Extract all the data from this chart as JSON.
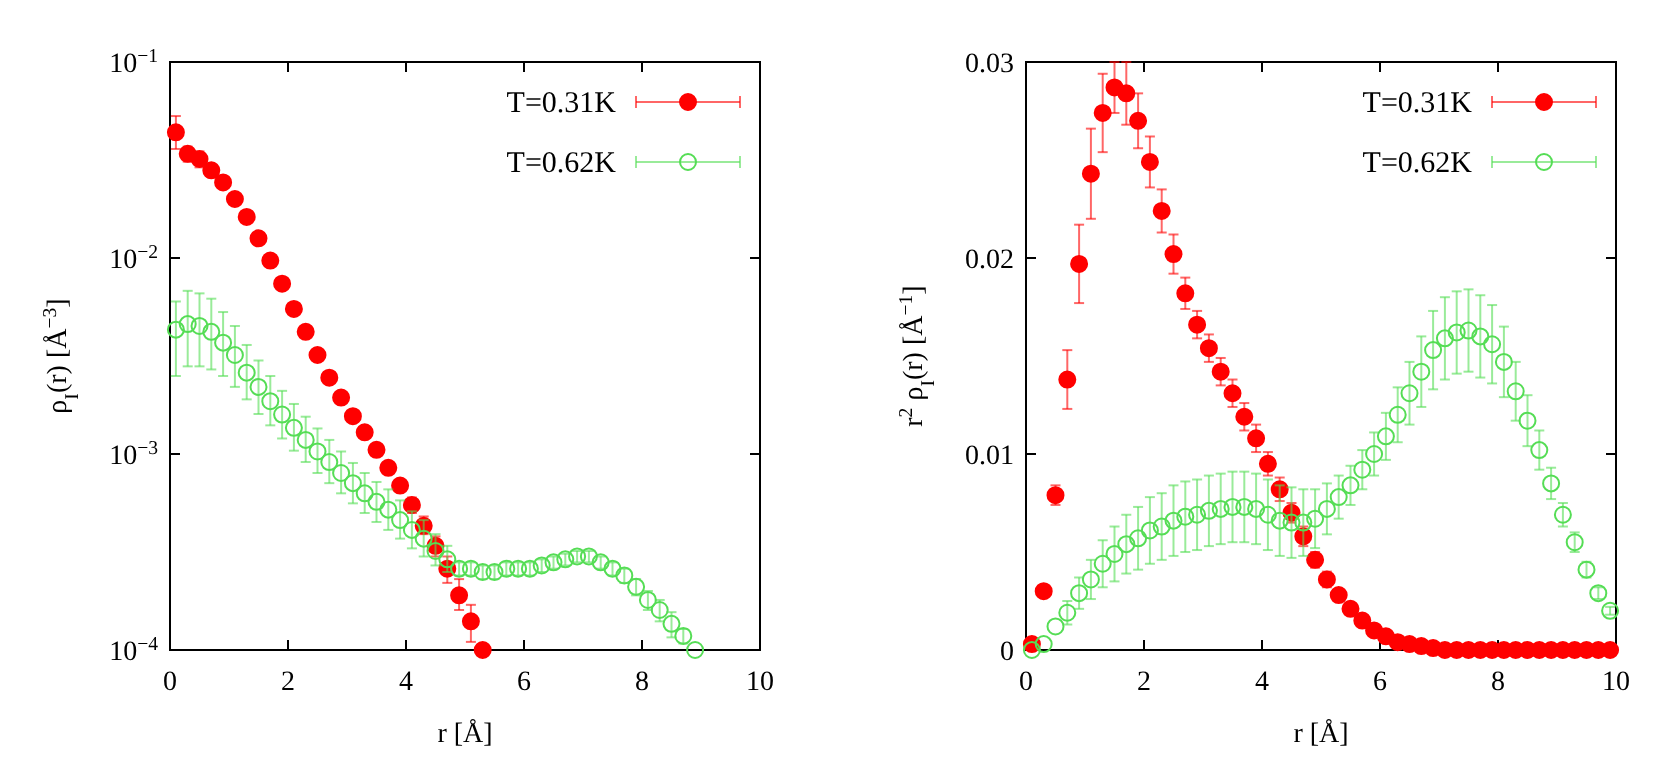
{
  "chart_data": [
    {
      "type": "scatter",
      "xlabel": "r [Å]",
      "ylabel": "ρ$_{I}$(r) [Å$^{−3}$]",
      "log": "y",
      "xlim": [
        0,
        10
      ],
      "xticks": [
        0,
        2,
        4,
        6,
        8,
        10
      ],
      "ylim": [
        0.0001,
        0.1
      ],
      "yticks": [
        {
          "value": 0.0001,
          "label": "10$^{−4}$"
        },
        {
          "value": 0.001,
          "label": "10$^{−3}$"
        },
        {
          "value": 0.01,
          "label": "10$^{−2}$"
        },
        {
          "value": 0.1,
          "label": "10$^{−1}$"
        }
      ],
      "grid": false,
      "legend": "top right",
      "marker": "circle",
      "series": [
        {
          "name": "T=0.31K",
          "color": "#ff0000",
          "x": [
            0.1,
            0.3,
            0.5,
            0.7,
            0.9,
            1.1,
            1.3,
            1.5,
            1.7,
            1.9,
            2.1,
            2.3,
            2.5,
            2.7,
            2.9,
            3.1,
            3.3,
            3.5,
            3.7,
            3.9,
            4.1,
            4.3,
            4.5,
            4.7,
            4.9,
            5.1,
            5.3
          ],
          "values": [
            0.0438,
            0.034,
            0.032,
            0.028,
            0.0243,
            0.02,
            0.0162,
            0.0126,
            0.0097,
            0.0074,
            0.0055,
            0.0042,
            0.0032,
            0.00245,
            0.00194,
            0.00156,
            0.00129,
            0.00105,
            0.00085,
            0.00069,
            0.00055,
            0.00043,
            0.00034,
            0.00026,
            0.00019,
            0.00014,
            0.0001
          ],
          "errors": [
            [
              0.036,
              0.053
            ],
            [
              0.031,
              0.037
            ],
            [
              0.029,
              0.035
            ],
            [
              0.026,
              0.03
            ],
            null,
            null,
            null,
            null,
            null,
            null,
            null,
            null,
            null,
            null,
            null,
            null,
            null,
            null,
            null,
            null,
            [
              0.0005,
              0.0006
            ],
            [
              0.00039,
              0.00048
            ],
            [
              0.0003,
              0.00038
            ],
            [
              0.00022,
              0.0003
            ],
            [
              0.00016,
              0.00023
            ],
            [
              0.00011,
              0.00017
            ],
            null
          ]
        },
        {
          "name": "T=0.62K",
          "color": "#55dd55",
          "x": [
            0.1,
            0.3,
            0.5,
            0.7,
            0.9,
            1.1,
            1.3,
            1.5,
            1.7,
            1.9,
            2.1,
            2.3,
            2.5,
            2.7,
            2.9,
            3.1,
            3.3,
            3.5,
            3.7,
            3.9,
            4.1,
            4.3,
            4.5,
            4.7,
            4.9,
            5.1,
            5.3,
            5.5,
            5.7,
            5.9,
            6.1,
            6.3,
            6.5,
            6.7,
            6.9,
            7.1,
            7.3,
            7.5,
            7.7,
            7.9,
            8.1,
            8.3,
            8.5,
            8.7,
            8.9
          ],
          "values": [
            0.00431,
            0.0046,
            0.0045,
            0.0042,
            0.0037,
            0.0032,
            0.0026,
            0.0022,
            0.00186,
            0.00159,
            0.00136,
            0.00118,
            0.00103,
            0.00091,
            0.0008,
            0.00071,
            0.00063,
            0.00057,
            0.00052,
            0.00046,
            0.00041,
            0.00037,
            0.00032,
            0.00029,
            0.00026,
            0.00026,
            0.00025,
            0.00025,
            0.00026,
            0.00026,
            0.00026,
            0.00027,
            0.00028,
            0.00029,
            0.0003,
            0.0003,
            0.00028,
            0.00026,
            0.00024,
            0.00021,
            0.00018,
            0.00016,
            0.000136,
            0.000118,
            0.0001
          ],
          "errors": [
            [
              0.0025,
              0.006
            ],
            [
              0.0028,
              0.0068
            ],
            [
              0.0028,
              0.0066
            ],
            [
              0.0027,
              0.0062
            ],
            [
              0.0025,
              0.0053
            ],
            [
              0.0022,
              0.0045
            ],
            [
              0.0019,
              0.0036
            ],
            [
              0.0016,
              0.003
            ],
            [
              0.0014,
              0.0025
            ],
            [
              0.0012,
              0.0021
            ],
            [
              0.00104,
              0.0018
            ],
            [
              0.00091,
              0.00155
            ],
            [
              0.0008,
              0.00135
            ],
            [
              0.00071,
              0.00118
            ],
            [
              0.00063,
              0.00103
            ],
            [
              0.00056,
              0.0009
            ],
            [
              0.0005,
              0.0008
            ],
            [
              0.00045,
              0.00072
            ],
            [
              0.00041,
              0.00066
            ],
            [
              0.00037,
              0.00058
            ],
            [
              0.00033,
              0.00051
            ],
            [
              0.0003,
              0.00046
            ],
            [
              0.00027,
              0.00039
            ],
            [
              0.00025,
              0.00034
            ],
            2e-05,
            2e-05,
            2e-05,
            2e-05,
            2e-05,
            2e-05,
            2e-05,
            2e-05,
            2e-05,
            2e-05,
            2e-05,
            2e-05,
            2e-05,
            2e-05,
            2e-05,
            2e-05,
            2e-05,
            2e-05,
            2e-05,
            1e-05,
            null
          ]
        }
      ]
    },
    {
      "type": "scatter",
      "xlabel": "r [Å]",
      "ylabel": "r$^{2}$ ρ$_{I}$(r) [Å$^{−1}$]",
      "xlim": [
        0,
        10
      ],
      "xticks": [
        0,
        2,
        4,
        6,
        8,
        10
      ],
      "ylim": [
        0,
        0.03
      ],
      "yticks": [
        0,
        0.01,
        0.02,
        0.03
      ],
      "grid": false,
      "legend": "top right",
      "marker": "circle",
      "series": [
        {
          "name": "T=0.31K",
          "color": "#ff0000",
          "x": [
            0.1,
            0.3,
            0.5,
            0.7,
            0.9,
            1.1,
            1.3,
            1.5,
            1.7,
            1.9,
            2.1,
            2.3,
            2.5,
            2.7,
            2.9,
            3.1,
            3.3,
            3.5,
            3.7,
            3.9,
            4.1,
            4.3,
            4.5,
            4.7,
            4.9,
            5.1,
            5.3,
            5.5,
            5.7,
            5.9,
            6.1,
            6.3,
            6.5,
            6.7,
            6.9,
            7.1,
            7.3,
            7.5,
            7.7,
            7.9,
            8.1,
            8.3,
            8.5,
            8.7,
            8.9,
            9.1,
            9.3,
            9.5,
            9.7,
            9.9
          ],
          "values": [
            0.0003,
            0.003,
            0.0079,
            0.0138,
            0.0197,
            0.0243,
            0.0274,
            0.0287,
            0.0284,
            0.027,
            0.0249,
            0.0224,
            0.0202,
            0.0182,
            0.0166,
            0.0154,
            0.0142,
            0.0131,
            0.0119,
            0.0108,
            0.0095,
            0.0082,
            0.007,
            0.0058,
            0.0046,
            0.0036,
            0.0028,
            0.0021,
            0.0015,
            0.001,
            0.0007,
            0.0004,
            0.0003,
            0.0002,
            0.0001,
            0,
            0,
            0,
            0,
            0,
            0,
            0,
            0,
            0,
            0,
            0,
            0,
            0,
            0,
            0
          ],
          "errors": [
            null,
            0.0003,
            0.0005,
            0.0015,
            0.002,
            0.0023,
            0.002,
            0.0013,
            0.0016,
            0.0014,
            0.0013,
            0.0011,
            0.001,
            0.0008,
            0.0007,
            0.0007,
            0.0007,
            0.0007,
            0.0007,
            0.0007,
            0.0006,
            0.0006,
            0.0005,
            0.0005,
            0.0004,
            0.0004,
            null,
            null,
            null,
            null,
            null,
            null,
            null,
            null,
            null,
            null,
            null,
            null,
            null,
            null,
            null,
            null,
            null,
            null,
            null,
            null,
            null,
            null,
            null,
            null
          ]
        },
        {
          "name": "T=0.62K",
          "color": "#55dd55",
          "x": [
            0.1,
            0.3,
            0.5,
            0.7,
            0.9,
            1.1,
            1.3,
            1.5,
            1.7,
            1.9,
            2.1,
            2.3,
            2.5,
            2.7,
            2.9,
            3.1,
            3.3,
            3.5,
            3.7,
            3.9,
            4.1,
            4.3,
            4.5,
            4.7,
            4.9,
            5.1,
            5.3,
            5.5,
            5.7,
            5.9,
            6.1,
            6.3,
            6.5,
            6.7,
            6.9,
            7.1,
            7.3,
            7.5,
            7.7,
            7.9,
            8.1,
            8.3,
            8.5,
            8.7,
            8.9,
            9.1,
            9.3,
            9.5,
            9.7,
            9.9
          ],
          "values": [
            0,
            0.0003,
            0.0012,
            0.0019,
            0.0029,
            0.0036,
            0.0044,
            0.0049,
            0.0054,
            0.0057,
            0.0061,
            0.0063,
            0.0066,
            0.0068,
            0.0069,
            0.0071,
            0.0072,
            0.0073,
            0.0073,
            0.0072,
            0.0069,
            0.0066,
            0.0065,
            0.0065,
            0.0067,
            0.0072,
            0.0078,
            0.0084,
            0.0092,
            0.01,
            0.0109,
            0.012,
            0.0131,
            0.0142,
            0.0153,
            0.0159,
            0.0162,
            0.0163,
            0.016,
            0.0156,
            0.0147,
            0.0132,
            0.0117,
            0.0102,
            0.0085,
            0.0069,
            0.0055,
            0.0041,
            0.0029,
            0.002
          ],
          "errors": [
            null,
            null,
            null,
            0.0006,
            0.0008,
            0.001,
            0.0012,
            0.0014,
            0.0015,
            0.0016,
            0.0017,
            0.0017,
            0.0018,
            0.0018,
            0.0018,
            0.0018,
            0.0018,
            0.0018,
            0.0018,
            0.0018,
            0.0018,
            0.0018,
            0.0018,
            0.0017,
            0.0015,
            0.0013,
            0.0011,
            0.001,
            0.001,
            0.0011,
            0.0012,
            0.0014,
            0.0016,
            0.0018,
            0.002,
            0.0021,
            0.0021,
            0.0021,
            0.0021,
            0.002,
            0.0018,
            0.0015,
            0.0013,
            0.001,
            0.0008,
            0.0006,
            0.0005,
            0.0004,
            0.0003,
            0.0002
          ]
        }
      ]
    }
  ]
}
